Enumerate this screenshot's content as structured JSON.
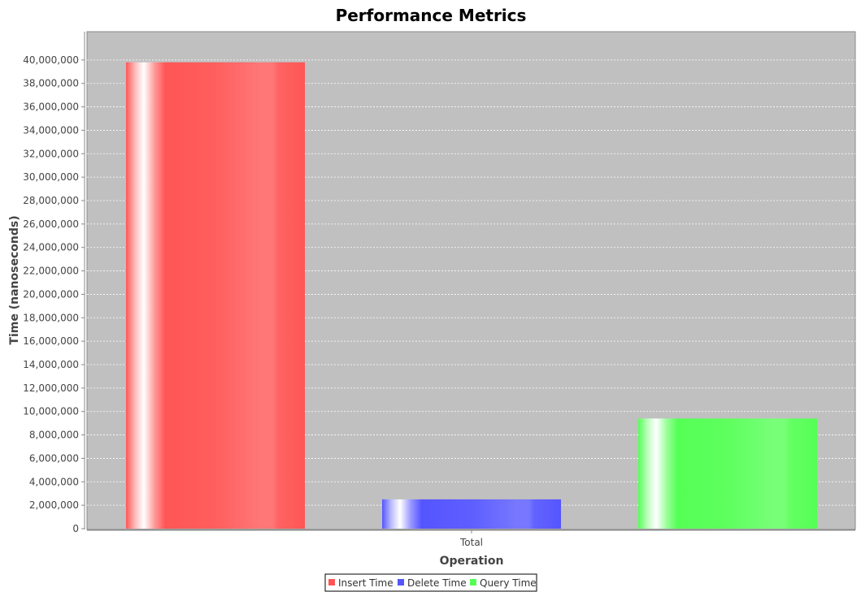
{
  "chart_data": {
    "type": "bar",
    "title": "Performance Metrics",
    "xlabel": "Operation",
    "ylabel": "Time (nanoseconds)",
    "categories": [
      "Total"
    ],
    "series": [
      {
        "name": "Insert Time",
        "values": [
          39800000
        ],
        "color": "#ff5555"
      },
      {
        "name": "Delete Time",
        "values": [
          2500000
        ],
        "color": "#5555ff"
      },
      {
        "name": "Query Time",
        "values": [
          9400000
        ],
        "color": "#55ff55"
      }
    ],
    "ylim": [
      0,
      42000000
    ],
    "yticks": [
      0,
      2000000,
      4000000,
      6000000,
      8000000,
      10000000,
      12000000,
      14000000,
      16000000,
      18000000,
      20000000,
      22000000,
      24000000,
      26000000,
      28000000,
      30000000,
      32000000,
      34000000,
      36000000,
      38000000,
      40000000
    ],
    "ytick_labels": [
      "0",
      "2,000,000",
      "4,000,000",
      "6,000,000",
      "8,000,000",
      "10,000,000",
      "12,000,000",
      "14,000,000",
      "16,000,000",
      "18,000,000",
      "20,000,000",
      "22,000,000",
      "24,000,000",
      "26,000,000",
      "28,000,000",
      "30,000,000",
      "32,000,000",
      "34,000,000",
      "36,000,000",
      "38,000,000",
      "40,000,000"
    ],
    "grid": true,
    "legend_position": "bottom",
    "plot_background": "#c0c0c0"
  }
}
